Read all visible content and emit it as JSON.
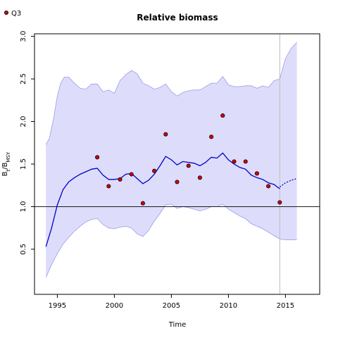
{
  "chart_data": {
    "type": "line",
    "title": "Relative biomass",
    "xlabel": "Time",
    "ylabel_main": "B",
    "ylabel_sub1": "t",
    "ylabel_mid": "/B",
    "ylabel_sub2": "MSY",
    "xlim": [
      1993,
      2018
    ],
    "ylim": [
      -0.03,
      3.03
    ],
    "x_ticks": [
      1995,
      2000,
      2005,
      2010,
      2015
    ],
    "y_ticks": [
      0.5,
      1.0,
      1.5,
      2.0,
      2.5,
      3.0
    ],
    "x_tick_labels": [
      "1995",
      "2000",
      "2005",
      "2010",
      "2015"
    ],
    "y_tick_labels": [
      "0.5",
      "1.0",
      "1.5",
      "2.0",
      "2.5",
      "3.0"
    ],
    "reference_line_y": 1.0,
    "vertical_marker_x": 2014.5,
    "legend": {
      "placement": "top-left",
      "entries": [
        "Q3"
      ]
    },
    "colors": {
      "estimate": "#0000cc",
      "band_fill": "#ddddfb",
      "band_edge": "#9a9aea",
      "points": "#cc0000",
      "points_edge": "#000000",
      "marker_line": "#bbbbbb",
      "reference_line": "#000000"
    },
    "estimate": {
      "x": [
        1994,
        1994.5,
        1995,
        1995.5,
        1996,
        1996.5,
        1997,
        1997.5,
        1998,
        1998.5,
        1999,
        1999.5,
        2000,
        2000.5,
        2001,
        2001.5,
        2002,
        2002.5,
        2003,
        2003.5,
        2004,
        2004.5,
        2005,
        2005.5,
        2006,
        2006.5,
        2007,
        2007.5,
        2008,
        2008.5,
        2009,
        2009.5,
        2010,
        2010.5,
        2011,
        2011.5,
        2012,
        2012.5,
        2013,
        2013.5,
        2014,
        2014.5
      ],
      "y": [
        0.53,
        0.75,
        1.02,
        1.2,
        1.29,
        1.34,
        1.38,
        1.41,
        1.44,
        1.45,
        1.37,
        1.32,
        1.32,
        1.33,
        1.38,
        1.39,
        1.33,
        1.27,
        1.31,
        1.38,
        1.48,
        1.59,
        1.55,
        1.49,
        1.53,
        1.52,
        1.51,
        1.48,
        1.52,
        1.58,
        1.57,
        1.63,
        1.55,
        1.5,
        1.46,
        1.44,
        1.37,
        1.34,
        1.32,
        1.28,
        1.26,
        1.21
      ]
    },
    "forecast": {
      "x": [
        2014.5,
        2015,
        2015.5,
        2016
      ],
      "y": [
        1.23,
        1.28,
        1.31,
        1.33
      ]
    },
    "band_upper": {
      "x": [
        1994,
        1994.3,
        1994.7,
        1995,
        1995.3,
        1995.6,
        1996,
        1996.5,
        1997,
        1997.5,
        1998,
        1998.5,
        1999,
        1999.5,
        2000,
        2000.5,
        2001,
        2001.5,
        2002,
        2002.5,
        2003,
        2003.5,
        2004,
        2004.5,
        2005,
        2005.5,
        2006,
        2006.5,
        2007,
        2007.5,
        2008,
        2008.5,
        2009,
        2009.5,
        2010,
        2010.5,
        2011,
        2011.5,
        2012,
        2012.5,
        2013,
        2013.5,
        2014,
        2014.5,
        2015,
        2015.5,
        2016
      ],
      "y": [
        1.73,
        1.8,
        2.05,
        2.3,
        2.45,
        2.52,
        2.52,
        2.45,
        2.39,
        2.38,
        2.44,
        2.44,
        2.35,
        2.37,
        2.33,
        2.48,
        2.55,
        2.6,
        2.56,
        2.45,
        2.42,
        2.38,
        2.4,
        2.44,
        2.35,
        2.3,
        2.34,
        2.36,
        2.37,
        2.37,
        2.41,
        2.45,
        2.45,
        2.53,
        2.43,
        2.41,
        2.41,
        2.42,
        2.42,
        2.39,
        2.42,
        2.4,
        2.48,
        2.5,
        2.74,
        2.86,
        2.93
      ]
    },
    "band_lower": {
      "x": [
        1994,
        1994.5,
        1995,
        1995.5,
        1996,
        1996.5,
        1997,
        1997.5,
        1998,
        1998.5,
        1999,
        1999.5,
        2000,
        2000.5,
        2001,
        2001.5,
        2002,
        2002.5,
        2003,
        2003.5,
        2004,
        2004.5,
        2005,
        2005.5,
        2006,
        2006.5,
        2007,
        2007.5,
        2008,
        2008.5,
        2009,
        2009.5,
        2010,
        2010.5,
        2011,
        2011.5,
        2012,
        2012.5,
        2013,
        2013.5,
        2014,
        2014.5,
        2015,
        2015.5,
        2016
      ],
      "y": [
        0.17,
        0.32,
        0.45,
        0.56,
        0.64,
        0.71,
        0.77,
        0.82,
        0.85,
        0.86,
        0.79,
        0.75,
        0.74,
        0.76,
        0.77,
        0.75,
        0.68,
        0.65,
        0.72,
        0.83,
        0.92,
        1.02,
        1.03,
        0.98,
        1.0,
        0.99,
        0.97,
        0.95,
        0.97,
        1.0,
        1.0,
        1.03,
        0.97,
        0.93,
        0.89,
        0.86,
        0.8,
        0.77,
        0.74,
        0.7,
        0.66,
        0.62,
        0.61,
        0.61,
        0.61
      ]
    },
    "series": [
      {
        "name": "Q3",
        "type": "scatter",
        "x": [
          1998.5,
          1999.5,
          2000.5,
          2001.5,
          2002.5,
          2003.5,
          2004.5,
          2005.5,
          2006.5,
          2007.5,
          2008.5,
          2009.5,
          2010.5,
          2011.5,
          2012.5,
          2013.5,
          2014.5
        ],
        "y": [
          1.58,
          1.24,
          1.32,
          1.38,
          1.04,
          1.42,
          1.85,
          1.29,
          1.48,
          1.34,
          1.82,
          2.07,
          1.53,
          1.53,
          1.39,
          1.24,
          1.05
        ]
      }
    ]
  }
}
